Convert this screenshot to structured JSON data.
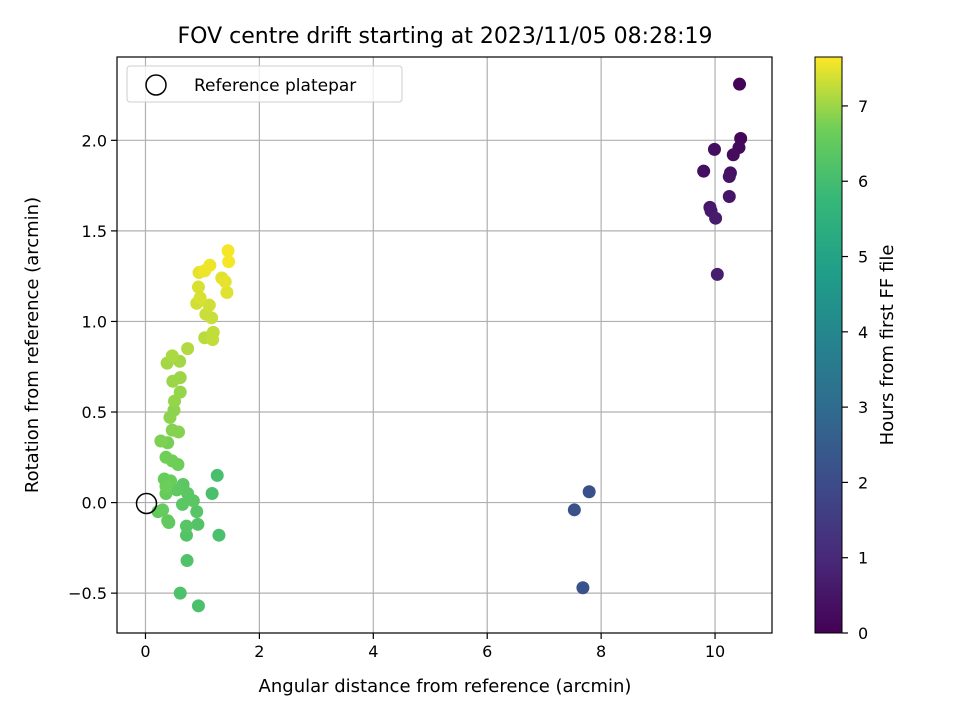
{
  "chart_data": {
    "type": "scatter",
    "title": "FOV centre drift starting at 2023/11/05 08:28:19",
    "xlabel": "Angular distance from reference (arcmin)",
    "ylabel": "Rotation from reference (arcmin)",
    "xlim": [
      -0.5,
      11.0
    ],
    "ylim": [
      -0.72,
      2.46
    ],
    "x_ticks": [
      0,
      2,
      4,
      6,
      8,
      10
    ],
    "x_tick_labels": [
      "0",
      "2",
      "4",
      "6",
      "8",
      "10"
    ],
    "y_ticks": [
      -0.5,
      0.0,
      0.5,
      1.0,
      1.5,
      2.0
    ],
    "y_tick_labels": [
      "−0.5",
      "0.0",
      "0.5",
      "1.0",
      "1.5",
      "2.0"
    ],
    "grid": true,
    "legend": {
      "placement": "top-left",
      "entries": [
        "Reference platepar"
      ]
    },
    "reference_point": {
      "x": 0.0,
      "y": 0.0
    },
    "colorbar": {
      "label": "Hours from first FF file",
      "range": [
        0,
        7.65
      ],
      "ticks": [
        0,
        1,
        2,
        3,
        4,
        5,
        6,
        7
      ],
      "tick_labels": [
        "0",
        "1",
        "2",
        "3",
        "4",
        "5",
        "6",
        "7"
      ],
      "colormap": "viridis"
    },
    "points": [
      {
        "x": 10.43,
        "y": 2.31,
        "h": 0.1
      },
      {
        "x": 10.45,
        "y": 2.01,
        "h": 0.15
      },
      {
        "x": 10.42,
        "y": 1.96,
        "h": 0.2
      },
      {
        "x": 10.32,
        "y": 1.92,
        "h": 0.25
      },
      {
        "x": 9.99,
        "y": 1.95,
        "h": 0.3
      },
      {
        "x": 9.8,
        "y": 1.83,
        "h": 0.35
      },
      {
        "x": 10.27,
        "y": 1.82,
        "h": 0.4
      },
      {
        "x": 10.25,
        "y": 1.8,
        "h": 0.45
      },
      {
        "x": 10.25,
        "y": 1.69,
        "h": 0.5
      },
      {
        "x": 9.91,
        "y": 1.63,
        "h": 0.55
      },
      {
        "x": 9.93,
        "y": 1.61,
        "h": 0.6
      },
      {
        "x": 10.01,
        "y": 1.57,
        "h": 0.65
      },
      {
        "x": 10.04,
        "y": 1.26,
        "h": 0.7
      },
      {
        "x": 7.79,
        "y": 0.06,
        "h": 2.1
      },
      {
        "x": 7.53,
        "y": -0.04,
        "h": 2.15
      },
      {
        "x": 7.68,
        "y": -0.47,
        "h": 2.2
      },
      {
        "x": 1.26,
        "y": 0.15,
        "h": 6.05
      },
      {
        "x": 1.17,
        "y": 0.05,
        "h": 6.1
      },
      {
        "x": 1.29,
        "y": -0.18,
        "h": 6.1
      },
      {
        "x": 0.93,
        "y": -0.57,
        "h": 6.1
      },
      {
        "x": 0.61,
        "y": -0.5,
        "h": 6.15
      },
      {
        "x": 0.73,
        "y": -0.32,
        "h": 6.2
      },
      {
        "x": 0.72,
        "y": -0.18,
        "h": 6.25
      },
      {
        "x": 0.92,
        "y": -0.12,
        "h": 6.25
      },
      {
        "x": 0.72,
        "y": -0.13,
        "h": 6.3
      },
      {
        "x": 0.9,
        "y": -0.05,
        "h": 6.3
      },
      {
        "x": 0.65,
        "y": -0.01,
        "h": 6.35
      },
      {
        "x": 0.84,
        "y": 0.01,
        "h": 6.35
      },
      {
        "x": 0.66,
        "y": 0.1,
        "h": 6.4
      },
      {
        "x": 0.74,
        "y": 0.05,
        "h": 6.4
      },
      {
        "x": 0.55,
        "y": 0.07,
        "h": 6.45
      },
      {
        "x": 0.41,
        "y": -0.11,
        "h": 6.45
      },
      {
        "x": 0.39,
        "y": -0.1,
        "h": 6.5
      },
      {
        "x": 0.22,
        "y": -0.05,
        "h": 6.5
      },
      {
        "x": 0.3,
        "y": -0.04,
        "h": 6.55
      },
      {
        "x": 0.36,
        "y": 0.05,
        "h": 6.55
      },
      {
        "x": 0.44,
        "y": 0.12,
        "h": 6.6
      },
      {
        "x": 0.33,
        "y": 0.13,
        "h": 6.6
      },
      {
        "x": 0.36,
        "y": 0.09,
        "h": 6.65
      },
      {
        "x": 0.57,
        "y": 0.21,
        "h": 6.65
      },
      {
        "x": 0.47,
        "y": 0.23,
        "h": 6.7
      },
      {
        "x": 0.36,
        "y": 0.25,
        "h": 6.7
      },
      {
        "x": 0.39,
        "y": 0.33,
        "h": 6.75
      },
      {
        "x": 0.27,
        "y": 0.34,
        "h": 6.8
      },
      {
        "x": 0.58,
        "y": 0.39,
        "h": 6.85
      },
      {
        "x": 0.47,
        "y": 0.4,
        "h": 6.85
      },
      {
        "x": 0.43,
        "y": 0.47,
        "h": 6.9
      },
      {
        "x": 0.5,
        "y": 0.51,
        "h": 6.9
      },
      {
        "x": 0.51,
        "y": 0.56,
        "h": 6.95
      },
      {
        "x": 0.61,
        "y": 0.61,
        "h": 6.95
      },
      {
        "x": 0.61,
        "y": 0.69,
        "h": 7.0
      },
      {
        "x": 0.48,
        "y": 0.67,
        "h": 7.0
      },
      {
        "x": 0.38,
        "y": 0.77,
        "h": 7.05
      },
      {
        "x": 0.6,
        "y": 0.78,
        "h": 7.05
      },
      {
        "x": 0.47,
        "y": 0.81,
        "h": 7.1
      },
      {
        "x": 0.74,
        "y": 0.85,
        "h": 7.15
      },
      {
        "x": 1.04,
        "y": 0.91,
        "h": 7.2
      },
      {
        "x": 1.18,
        "y": 0.9,
        "h": 7.25
      },
      {
        "x": 1.19,
        "y": 0.94,
        "h": 7.25
      },
      {
        "x": 1.16,
        "y": 1.02,
        "h": 7.3
      },
      {
        "x": 1.06,
        "y": 1.04,
        "h": 7.3
      },
      {
        "x": 1.12,
        "y": 1.09,
        "h": 7.35
      },
      {
        "x": 0.9,
        "y": 1.1,
        "h": 7.35
      },
      {
        "x": 0.96,
        "y": 1.13,
        "h": 7.4
      },
      {
        "x": 0.93,
        "y": 1.19,
        "h": 7.4
      },
      {
        "x": 1.43,
        "y": 1.16,
        "h": 7.45
      },
      {
        "x": 1.34,
        "y": 1.24,
        "h": 7.45
      },
      {
        "x": 1.4,
        "y": 1.22,
        "h": 7.5
      },
      {
        "x": 0.94,
        "y": 1.27,
        "h": 7.5
      },
      {
        "x": 1.04,
        "y": 1.28,
        "h": 7.55
      },
      {
        "x": 1.13,
        "y": 1.31,
        "h": 7.55
      },
      {
        "x": 1.46,
        "y": 1.33,
        "h": 7.6
      },
      {
        "x": 1.45,
        "y": 1.39,
        "h": 7.6
      }
    ]
  }
}
